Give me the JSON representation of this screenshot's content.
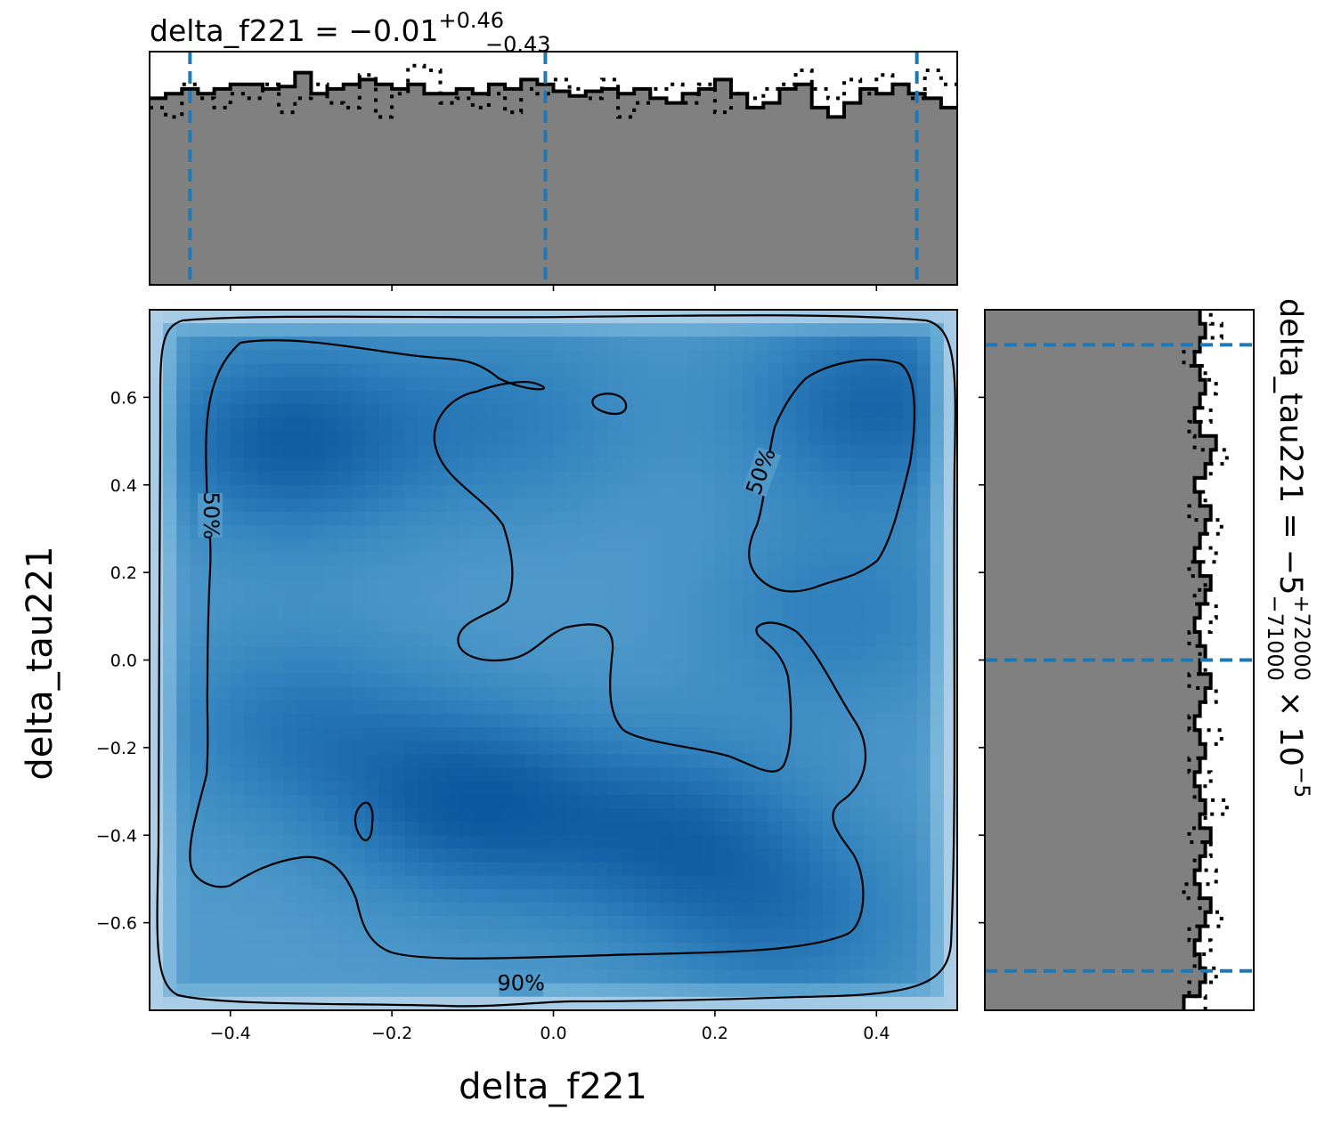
{
  "chart_data": [
    {
      "type": "heatmap",
      "panel": "joint",
      "xlabel": "delta_f221",
      "ylabel": "delta_tau221",
      "xlim": [
        -0.5,
        0.5
      ],
      "ylim": [
        -0.8,
        0.8
      ],
      "x_ticks": [
        "−0.4",
        "−0.2",
        "0.0",
        "0.2",
        "0.4"
      ],
      "x_tick_values": [
        -0.4,
        -0.2,
        0.0,
        0.2,
        0.4
      ],
      "y_ticks": [
        "0.6",
        "0.4",
        "0.2",
        "0.0",
        "−0.2",
        "−0.4",
        "−0.6"
      ],
      "y_tick_values": [
        0.6,
        0.4,
        0.2,
        0.0,
        -0.2,
        -0.4,
        -0.6
      ],
      "colormap": "Blues",
      "density_peaks": [
        {
          "x": -0.33,
          "y": 0.5,
          "w": 1.0
        },
        {
          "x": 0.4,
          "y": 0.58,
          "w": 0.9
        },
        {
          "x": -0.1,
          "y": -0.33,
          "w": 1.0
        },
        {
          "x": 0.15,
          "y": -0.4,
          "w": 0.8
        },
        {
          "x": -0.32,
          "y": -0.15,
          "w": 0.6
        },
        {
          "x": 0.3,
          "y": -0.6,
          "w": 0.6
        },
        {
          "x": -0.05,
          "y": 0.55,
          "w": 0.5
        },
        {
          "x": 0.35,
          "y": 0.1,
          "w": 0.5
        }
      ],
      "contour_labels": [
        {
          "text": "50%",
          "x": -0.425,
          "y": 0.33,
          "angle": 90
        },
        {
          "text": "50%",
          "x": 0.258,
          "y": 0.43,
          "angle": -70
        },
        {
          "text": "90%",
          "x": -0.04,
          "y": -0.74,
          "angle": 0
        }
      ]
    },
    {
      "type": "bar",
      "panel": "marginal-x",
      "title_main": "delta_f221 = −0.01",
      "title_sup": "+0.46",
      "title_sub": "−0.43",
      "xlim": [
        -0.5,
        0.5
      ],
      "quantile_lines": [
        -0.45,
        -0.01,
        0.45
      ],
      "n_bins": 50,
      "values": [
        0.8,
        0.82,
        0.84,
        0.82,
        0.84,
        0.86,
        0.86,
        0.84,
        0.85,
        0.91,
        0.82,
        0.84,
        0.86,
        0.88,
        0.86,
        0.84,
        0.86,
        0.82,
        0.82,
        0.84,
        0.82,
        0.86,
        0.84,
        0.88,
        0.86,
        0.83,
        0.81,
        0.83,
        0.84,
        0.82,
        0.84,
        0.8,
        0.78,
        0.82,
        0.84,
        0.88,
        0.82,
        0.76,
        0.78,
        0.84,
        0.86,
        0.76,
        0.72,
        0.78,
        0.84,
        0.82,
        0.86,
        0.82,
        0.8,
        0.76
      ],
      "values_dotted": [
        0.76,
        0.72,
        0.86,
        0.8,
        0.76,
        0.82,
        0.8,
        0.86,
        0.74,
        0.8,
        0.86,
        0.78,
        0.76,
        0.9,
        0.72,
        0.82,
        0.94,
        0.92,
        0.78,
        0.8,
        0.76,
        0.82,
        0.74,
        0.84,
        0.82,
        0.88,
        0.84,
        0.8,
        0.88,
        0.72,
        0.78,
        0.84,
        0.86,
        0.78,
        0.86,
        0.74,
        0.82,
        0.8,
        0.84,
        0.86,
        0.92,
        0.84,
        0.8,
        0.88,
        0.82,
        0.9,
        0.86,
        0.8,
        0.92,
        0.86
      ]
    },
    {
      "type": "bar",
      "panel": "marginal-y",
      "title_main": "delta_tau221 = −5",
      "title_sup": "+72000",
      "title_sub": "−71000",
      "title_tail": " × 10",
      "title_exp": "−5",
      "ylim": [
        -0.8,
        0.8
      ],
      "quantile_lines": [
        -0.71,
        0.0,
        0.72
      ],
      "n_bins": 50,
      "values": [
        0.74,
        0.8,
        0.82,
        0.8,
        0.78,
        0.8,
        0.82,
        0.84,
        0.8,
        0.78,
        0.8,
        0.82,
        0.84,
        0.8,
        0.82,
        0.8,
        0.78,
        0.8,
        0.82,
        0.8,
        0.78,
        0.8,
        0.82,
        0.84,
        0.8,
        0.82,
        0.8,
        0.78,
        0.8,
        0.82,
        0.84,
        0.8,
        0.78,
        0.8,
        0.82,
        0.84,
        0.8,
        0.78,
        0.82,
        0.84,
        0.86,
        0.8,
        0.78,
        0.8,
        0.82,
        0.8,
        0.78,
        0.8,
        0.82,
        0.8
      ],
      "values_dotted": [
        0.82,
        0.76,
        0.86,
        0.78,
        0.84,
        0.76,
        0.88,
        0.8,
        0.74,
        0.86,
        0.78,
        0.84,
        0.76,
        0.82,
        0.9,
        0.78,
        0.84,
        0.76,
        0.82,
        0.88,
        0.76,
        0.8,
        0.86,
        0.76,
        0.82,
        0.8,
        0.76,
        0.84,
        0.86,
        0.78,
        0.82,
        0.76,
        0.86,
        0.8,
        0.88,
        0.76,
        0.82,
        0.78,
        0.84,
        0.9,
        0.78,
        0.76,
        0.84,
        0.8,
        0.86,
        0.82,
        0.74,
        0.8,
        0.88,
        0.84
      ]
    }
  ],
  "colors": {
    "hist_fill": "#808080",
    "quantile_line": "#1f77b4",
    "contour": "#000000"
  }
}
